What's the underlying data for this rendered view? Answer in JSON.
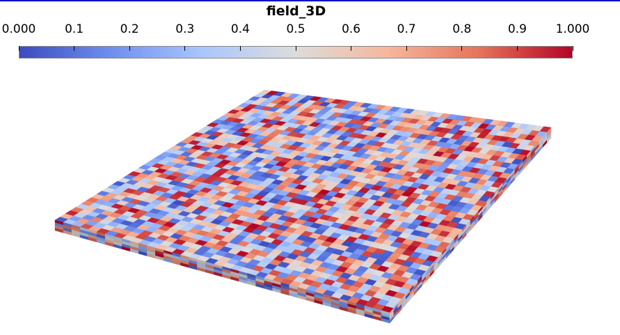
{
  "scalar_bar": {
    "title": "field_3D",
    "tick_labels": [
      "0.000",
      "0.1",
      "0.2",
      "0.3",
      "0.4",
      "0.5",
      "0.6",
      "0.7",
      "0.8",
      "0.9",
      "1.000"
    ],
    "range": [
      0.0,
      1.0
    ],
    "colormap": [
      "#3b4cc0",
      "#6f8ff0",
      "#aac7fd",
      "#dddcdc",
      "#f6b79c",
      "#e5735a",
      "#b40426"
    ]
  },
  "scene": {
    "grid_cells": 40,
    "thickness_cells": 4,
    "border_color": "#0000cc"
  }
}
